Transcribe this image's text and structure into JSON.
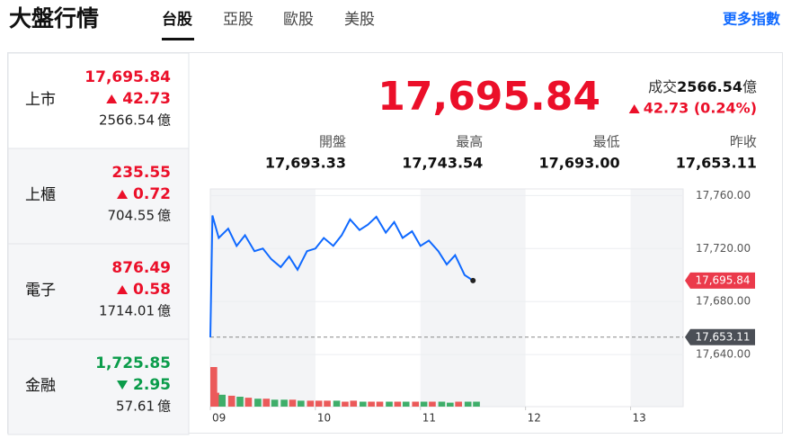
{
  "header": {
    "title": "大盤行情",
    "tabs": [
      "台股",
      "亞股",
      "歐股",
      "美股"
    ],
    "link": "更多指數"
  },
  "markets": [
    {
      "name": "上市",
      "price": "17,695.84",
      "change": "42.73",
      "dir": "up",
      "volume": "2566.54",
      "unit": "億"
    },
    {
      "name": "上櫃",
      "price": "235.55",
      "change": "0.72",
      "dir": "up",
      "volume": "704.55",
      "unit": "億"
    },
    {
      "name": "電子",
      "price": "876.49",
      "change": "0.58",
      "dir": "up",
      "volume": "1714.01",
      "unit": "億"
    },
    {
      "name": "金融",
      "price": "1,725.85",
      "change": "2.95",
      "dir": "down",
      "volume": "57.61",
      "unit": "億"
    }
  ],
  "summary": {
    "price": "17,695.84",
    "turnover_label": "成交",
    "turnover": "2566.54",
    "turnover_unit": "億",
    "change": "42.73 (0.24%)",
    "stats": [
      {
        "label": "開盤",
        "value": "17,693.33"
      },
      {
        "label": "最高",
        "value": "17,743.54"
      },
      {
        "label": "最低",
        "value": "17,693.00"
      },
      {
        "label": "昨收",
        "value": "17,653.11"
      }
    ]
  },
  "chart_data": {
    "type": "line",
    "color": "#0f69ff",
    "x": [
      9,
      9.02,
      9.08,
      9.17,
      9.25,
      9.33,
      9.42,
      9.5,
      9.58,
      9.67,
      9.75,
      9.83,
      9.92,
      10,
      10.08,
      10.17,
      10.25,
      10.33,
      10.42,
      10.5,
      10.58,
      10.67,
      10.75,
      10.83,
      10.92,
      11,
      11.08,
      11.17,
      11.25,
      11.33,
      11.42,
      11.5
    ],
    "values": [
      17653,
      17745,
      17728,
      17735,
      17722,
      17730,
      17718,
      17720,
      17712,
      17706,
      17714,
      17704,
      17718,
      17720,
      17728,
      17722,
      17730,
      17742,
      17734,
      17738,
      17744,
      17732,
      17740,
      17728,
      17733,
      17722,
      17726,
      17718,
      17708,
      17715,
      17700,
      17695.84
    ],
    "volume": [
      40,
      14,
      12,
      11,
      10,
      9,
      8,
      8,
      7,
      7,
      7,
      6,
      6,
      6,
      6,
      6,
      5,
      6,
      5,
      5,
      5,
      5,
      5,
      5,
      5,
      5,
      5,
      5,
      4,
      5,
      5,
      5
    ],
    "xlim": [
      9,
      13.5
    ],
    "xticks": [
      {
        "value": 9,
        "label": "09"
      },
      10,
      11,
      12,
      13
    ],
    "ylim": [
      17636,
      17765
    ],
    "yticks": [
      {
        "value": 17640,
        "label": "17,640.00"
      },
      {
        "value": 17680,
        "label": "17,680.00"
      },
      {
        "value": 17720,
        "label": "17,720.00"
      },
      {
        "value": 17760,
        "label": "17,760.00"
      }
    ],
    "markers": [
      {
        "value": 17695.84,
        "label": "17,695.84",
        "color": "#eb3a4b"
      },
      {
        "value": 17653.11,
        "label": "17,653.11",
        "color": "#4b4f56"
      }
    ]
  }
}
